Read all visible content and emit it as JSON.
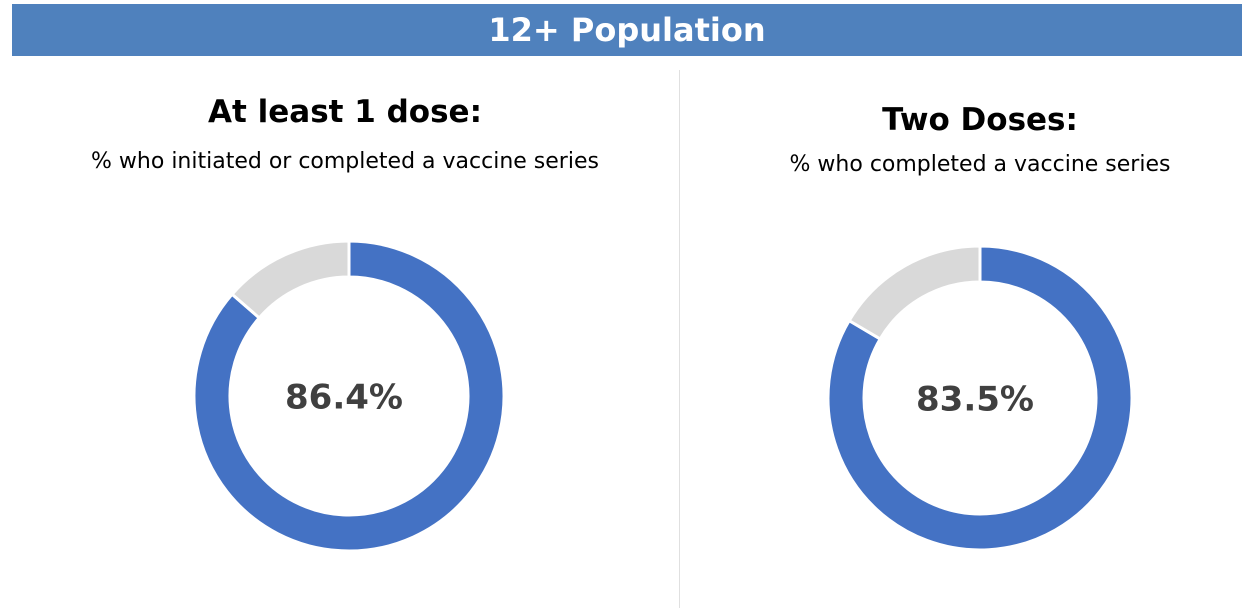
{
  "header": {
    "title": "12+ Population"
  },
  "chart_data": [
    {
      "type": "donut",
      "title": "At least 1 dose:",
      "subtitle": "% who initiated or completed a vaccine series",
      "values": [
        86.4,
        13.6
      ],
      "value_labels": [
        "86.4%",
        null
      ],
      "colors": [
        "#4472c4",
        "#d9d9d9"
      ]
    },
    {
      "type": "donut",
      "title": "Two Doses:",
      "subtitle": "% who completed a vaccine series",
      "values": [
        83.5,
        16.5
      ],
      "value_labels": [
        "83.5%",
        null
      ],
      "colors": [
        "#4472c4",
        "#d9d9d9"
      ]
    }
  ]
}
